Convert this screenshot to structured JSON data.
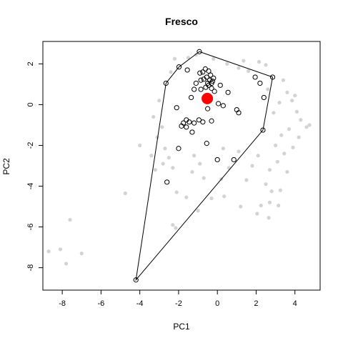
{
  "chart_data": {
    "type": "scatter",
    "title": "Fresco",
    "xlabel": "PC1",
    "ylabel": "PC2",
    "xlim": [
      -9.0,
      5.3
    ],
    "ylim": [
      -9.1,
      3.1
    ],
    "x_ticks": [
      -8,
      -6,
      -4,
      -2,
      0,
      2,
      4
    ],
    "y_ticks": [
      -8,
      -6,
      -4,
      -2,
      0,
      2
    ],
    "grid": false,
    "colors": {
      "background_points": "#d3d3d3",
      "highlighted_points": "#000000",
      "centroid": "#ff0000",
      "hull": "#000000"
    },
    "centroid": {
      "x": -0.52,
      "y": 0.3
    },
    "hull": [
      {
        "x": -0.93,
        "y": 2.6
      },
      {
        "x": 2.85,
        "y": 1.35
      },
      {
        "x": 2.35,
        "y": -1.25
      },
      {
        "x": -4.2,
        "y": -8.6
      },
      {
        "x": -2.65,
        "y": 1.05
      },
      {
        "x": -1.98,
        "y": 1.85
      }
    ],
    "highlighted_points": [
      {
        "x": -0.93,
        "y": 2.6
      },
      {
        "x": 2.85,
        "y": 1.35
      },
      {
        "x": 2.35,
        "y": -1.25
      },
      {
        "x": -4.2,
        "y": -8.6
      },
      {
        "x": -2.65,
        "y": 1.05
      },
      {
        "x": -1.98,
        "y": 1.85
      },
      {
        "x": -1.55,
        "y": 1.7
      },
      {
        "x": -0.9,
        "y": 1.55
      },
      {
        "x": -0.75,
        "y": 1.6
      },
      {
        "x": -0.62,
        "y": 1.75
      },
      {
        "x": -0.45,
        "y": 1.65
      },
      {
        "x": -0.35,
        "y": 1.45
      },
      {
        "x": -0.55,
        "y": 1.35
      },
      {
        "x": -0.4,
        "y": 1.2
      },
      {
        "x": -0.3,
        "y": 1.05
      },
      {
        "x": -0.7,
        "y": 1.25
      },
      {
        "x": -0.2,
        "y": 1.3
      },
      {
        "x": -0.45,
        "y": 0.95
      },
      {
        "x": -0.6,
        "y": 0.85
      },
      {
        "x": -0.3,
        "y": 0.8
      },
      {
        "x": -0.85,
        "y": 0.75
      },
      {
        "x": -1.1,
        "y": 1.05
      },
      {
        "x": -1.35,
        "y": 0.35
      },
      {
        "x": -1.2,
        "y": 0.75
      },
      {
        "x": -0.15,
        "y": 0.65
      },
      {
        "x": 0.05,
        "y": 0.05
      },
      {
        "x": 0.3,
        "y": -0.05
      },
      {
        "x": 0.55,
        "y": 0.6
      },
      {
        "x": 1.0,
        "y": -0.25
      },
      {
        "x": 1.1,
        "y": -0.4
      },
      {
        "x": 1.95,
        "y": 1.35
      },
      {
        "x": 2.2,
        "y": 1.05
      },
      {
        "x": 2.4,
        "y": 0.35
      },
      {
        "x": -2.1,
        "y": -0.15
      },
      {
        "x": -1.6,
        "y": -0.75
      },
      {
        "x": -1.45,
        "y": -0.85
      },
      {
        "x": -1.2,
        "y": -0.9
      },
      {
        "x": -1.3,
        "y": -1.35
      },
      {
        "x": -1.6,
        "y": -1.1
      },
      {
        "x": -1.85,
        "y": -1.05
      },
      {
        "x": -0.75,
        "y": -0.85
      },
      {
        "x": -0.3,
        "y": -0.8
      },
      {
        "x": -0.5,
        "y": -0.2
      },
      {
        "x": -0.55,
        "y": -1.9
      },
      {
        "x": -2.0,
        "y": -2.15
      },
      {
        "x": -2.6,
        "y": -3.8
      },
      {
        "x": 0.0,
        "y": -2.7
      },
      {
        "x": 0.85,
        "y": -2.7
      },
      {
        "x": -0.95,
        "y": -0.75
      },
      {
        "x": -1.75,
        "y": -0.9
      },
      {
        "x": -0.25,
        "y": 1.15
      },
      {
        "x": -0.5,
        "y": 1.05
      },
      {
        "x": 0.15,
        "y": 0.95
      },
      {
        "x": -0.85,
        "y": 1.2
      }
    ],
    "background_points": [
      {
        "x": -8.7,
        "y": -7.2
      },
      {
        "x": -8.1,
        "y": -7.1
      },
      {
        "x": -7.8,
        "y": -7.8
      },
      {
        "x": -7.0,
        "y": -7.3
      },
      {
        "x": -7.6,
        "y": -5.65
      },
      {
        "x": -4.75,
        "y": -4.35
      },
      {
        "x": 4.6,
        "y": -1.1
      },
      {
        "x": 4.75,
        "y": -1.0
      },
      {
        "x": -3.2,
        "y": -3.2
      },
      {
        "x": -3.4,
        "y": -2.5
      },
      {
        "x": -2.3,
        "y": -5.9
      },
      {
        "x": -2.15,
        "y": -6.05
      },
      {
        "x": -2.1,
        "y": -4.3
      },
      {
        "x": -1.6,
        "y": -4.55
      },
      {
        "x": -1.0,
        "y": -5.2
      },
      {
        "x": -0.3,
        "y": -4.6
      },
      {
        "x": 0.35,
        "y": -4.5
      },
      {
        "x": 1.2,
        "y": -5.0
      },
      {
        "x": 2.05,
        "y": -5.35
      },
      {
        "x": 2.25,
        "y": -4.95
      },
      {
        "x": 2.65,
        "y": -5.55
      },
      {
        "x": 2.7,
        "y": -4.8
      },
      {
        "x": 3.15,
        "y": -4.95
      },
      {
        "x": 2.8,
        "y": -4.25
      },
      {
        "x": 3.25,
        "y": -4.2
      },
      {
        "x": 2.5,
        "y": -3.9
      },
      {
        "x": 1.5,
        "y": -3.7
      },
      {
        "x": 0.2,
        "y": -3.65
      },
      {
        "x": -0.7,
        "y": -3.6
      },
      {
        "x": -1.3,
        "y": -3.3
      },
      {
        "x": -2.3,
        "y": -3.1
      },
      {
        "x": -2.8,
        "y": -2.9
      },
      {
        "x": -2.5,
        "y": -2.6
      },
      {
        "x": -0.9,
        "y": -2.9
      },
      {
        "x": 0.6,
        "y": -3.1
      },
      {
        "x": 1.8,
        "y": -3.0
      },
      {
        "x": 2.7,
        "y": -3.2
      },
      {
        "x": 3.6,
        "y": -3.3
      },
      {
        "x": 3.1,
        "y": -2.8
      },
      {
        "x": -4.0,
        "y": -2.0
      },
      {
        "x": 1.1,
        "y": 1.8
      },
      {
        "x": 1.6,
        "y": 1.65
      },
      {
        "x": 2.15,
        "y": 2.1
      },
      {
        "x": 2.5,
        "y": 1.95
      },
      {
        "x": 1.35,
        "y": 2.15
      },
      {
        "x": 0.5,
        "y": 2.0
      },
      {
        "x": -0.2,
        "y": 2.25
      },
      {
        "x": -1.5,
        "y": 2.3
      },
      {
        "x": -1.1,
        "y": 2.45
      },
      {
        "x": -2.4,
        "y": 1.6
      },
      {
        "x": -2.2,
        "y": 2.25
      },
      {
        "x": 3.4,
        "y": 1.2
      },
      {
        "x": 3.6,
        "y": 0.6
      },
      {
        "x": 3.85,
        "y": 0.2
      },
      {
        "x": 4.1,
        "y": -0.35
      },
      {
        "x": 4.0,
        "y": 0.45
      },
      {
        "x": 4.3,
        "y": -0.75
      },
      {
        "x": 4.2,
        "y": -1.6
      },
      {
        "x": 3.9,
        "y": -2.1
      },
      {
        "x": 3.45,
        "y": -2.4
      },
      {
        "x": 2.1,
        "y": -2.5
      },
      {
        "x": 1.1,
        "y": -2.3
      },
      {
        "x": 0.3,
        "y": -2.15
      },
      {
        "x": -1.2,
        "y": -2.5
      },
      {
        "x": -2.7,
        "y": -2.15
      },
      {
        "x": -3.1,
        "y": -1.6
      },
      {
        "x": -3.3,
        "y": -0.6
      },
      {
        "x": -3.0,
        "y": 0.2
      },
      {
        "x": -2.85,
        "y": -1.1
      },
      {
        "x": 3.3,
        "y": -1.5
      },
      {
        "x": 3.0,
        "y": -2.0
      },
      {
        "x": 3.7,
        "y": -1.2
      },
      {
        "x": 2.9,
        "y": -0.4
      },
      {
        "x": 3.2,
        "y": 0.1
      },
      {
        "x": 2.6,
        "y": 0.75
      }
    ],
    "background_cluster_note": ""
  }
}
